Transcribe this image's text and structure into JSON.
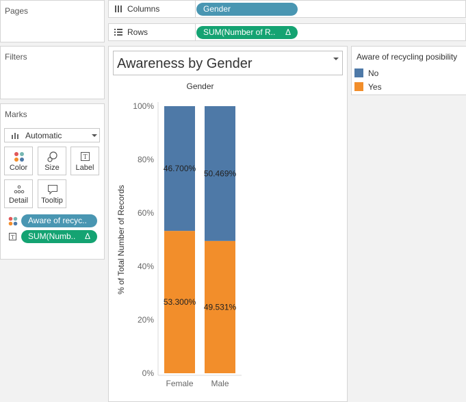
{
  "panels": {
    "pages": "Pages",
    "filters": "Filters",
    "marks": "Marks"
  },
  "shelves": {
    "columns": {
      "label": "Columns",
      "pill": "Gender"
    },
    "rows": {
      "label": "Rows",
      "pill": "SUM(Number of R..",
      "delta": "Δ"
    }
  },
  "marks": {
    "type": "Automatic",
    "buttons": [
      "Color",
      "Size",
      "Label",
      "Detail",
      "Tooltip"
    ],
    "pills": [
      {
        "text": "Aware of recyc..",
        "icon": "color-dots-icon"
      },
      {
        "text": "SUM(Numb..",
        "delta": "Δ",
        "icon": "text-label-icon"
      }
    ]
  },
  "sheet": {
    "title": "Awareness by Gender",
    "header": "Gender"
  },
  "legend": {
    "title": "Aware of recycling posibility",
    "items": [
      {
        "label": "No",
        "color": "#4e79a7"
      },
      {
        "label": "Yes",
        "color": "#f28e2b"
      }
    ]
  },
  "chart_data": {
    "type": "bar",
    "stacked": true,
    "title": "Awareness by Gender",
    "column_header": "Gender",
    "ylabel": "% of Total Number of Records",
    "categories": [
      "Female",
      "Male"
    ],
    "series": [
      {
        "name": "Yes",
        "color": "#f28e2b",
        "values": [
          53.3,
          49.531
        ],
        "labels": [
          "53.300%",
          "49.531%"
        ]
      },
      {
        "name": "No",
        "color": "#4e79a7",
        "values": [
          46.7,
          50.469
        ],
        "labels": [
          "46.700%",
          "50.469%"
        ]
      }
    ],
    "ylim": [
      0,
      100
    ],
    "yticks": [
      "0%",
      "20%",
      "40%",
      "60%",
      "80%",
      "100%"
    ],
    "ytick_values": [
      0,
      20,
      40,
      60,
      80,
      100
    ]
  }
}
